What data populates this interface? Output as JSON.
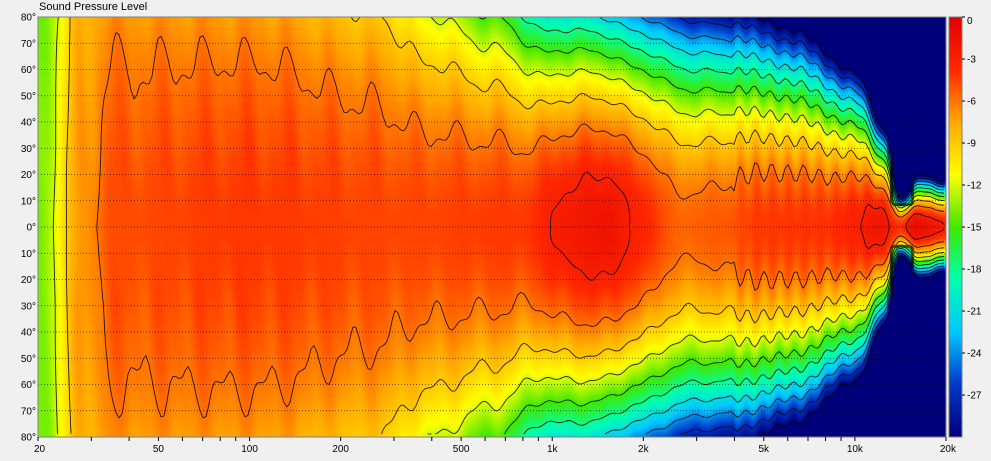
{
  "chart_data": {
    "type": "heatmap",
    "title": "Sound Pressure Level",
    "xlabel": "",
    "ylabel": "",
    "x_scale": "log",
    "xlim": [
      20,
      20000
    ],
    "ylim": [
      -80,
      80
    ],
    "x_ticks": [
      {
        "value": 20,
        "label": "20"
      },
      {
        "value": 50,
        "label": "50"
      },
      {
        "value": 100,
        "label": "100"
      },
      {
        "value": 200,
        "label": "200"
      },
      {
        "value": 500,
        "label": "500"
      },
      {
        "value": 1000,
        "label": "1k"
      },
      {
        "value": 2000,
        "label": "2k"
      },
      {
        "value": 5000,
        "label": "5k"
      },
      {
        "value": 10000,
        "label": "10k"
      },
      {
        "value": 20000,
        "label": "20k"
      }
    ],
    "y_ticks": [
      {
        "value": 80,
        "label": "80°"
      },
      {
        "value": 70,
        "label": "70°"
      },
      {
        "value": 60,
        "label": "60°"
      },
      {
        "value": 50,
        "label": "50°"
      },
      {
        "value": 40,
        "label": "40°"
      },
      {
        "value": 30,
        "label": "30°"
      },
      {
        "value": 20,
        "label": "20°"
      },
      {
        "value": 10,
        "label": "10°"
      },
      {
        "value": 0,
        "label": "0°"
      },
      {
        "value": -10,
        "label": "10°"
      },
      {
        "value": -20,
        "label": "20°"
      },
      {
        "value": -30,
        "label": "30°"
      },
      {
        "value": -40,
        "label": "40°"
      },
      {
        "value": -50,
        "label": "50°"
      },
      {
        "value": -60,
        "label": "60°"
      },
      {
        "value": -70,
        "label": "70°"
      },
      {
        "value": -80,
        "label": "80°"
      }
    ],
    "colorbar": {
      "range": [
        -30,
        0
      ],
      "ticks": [
        {
          "value": 0,
          "label": "0"
        },
        {
          "value": -3,
          "label": "-3"
        },
        {
          "value": -6,
          "label": "-6"
        },
        {
          "value": -9,
          "label": "-9"
        },
        {
          "value": -12,
          "label": "-12"
        },
        {
          "value": -15,
          "label": "-15"
        },
        {
          "value": -18,
          "label": "-18"
        },
        {
          "value": -21,
          "label": "-21"
        },
        {
          "value": -24,
          "label": "-24"
        },
        {
          "value": -27,
          "label": "-27"
        }
      ],
      "colors": [
        "#00007a",
        "#0038c8",
        "#00c8ff",
        "#00ffb0",
        "#40e800",
        "#ffff00",
        "#ffa800",
        "#ff2800",
        "#e00000"
      ]
    },
    "contour_step_db": 3,
    "grid": true,
    "key_points_db": [
      {
        "freq": 50,
        "angle": 0,
        "db": -4
      },
      {
        "freq": 300,
        "angle": 0,
        "db": -4.5
      },
      {
        "freq": 1500,
        "angle": 0,
        "db": -2
      },
      {
        "freq": 3000,
        "angle": 0,
        "db": -5
      },
      {
        "freq": 12000,
        "angle": 0,
        "db": -2
      },
      {
        "freq": 16000,
        "angle": 0,
        "db": -1
      },
      {
        "freq": 1000,
        "angle": 60,
        "db": -14
      },
      {
        "freq": 5000,
        "angle": 70,
        "db": -22
      },
      {
        "freq": 15000,
        "angle": 80,
        "db": -30
      },
      {
        "freq": 20,
        "angle": 0,
        "db": -14
      }
    ]
  }
}
